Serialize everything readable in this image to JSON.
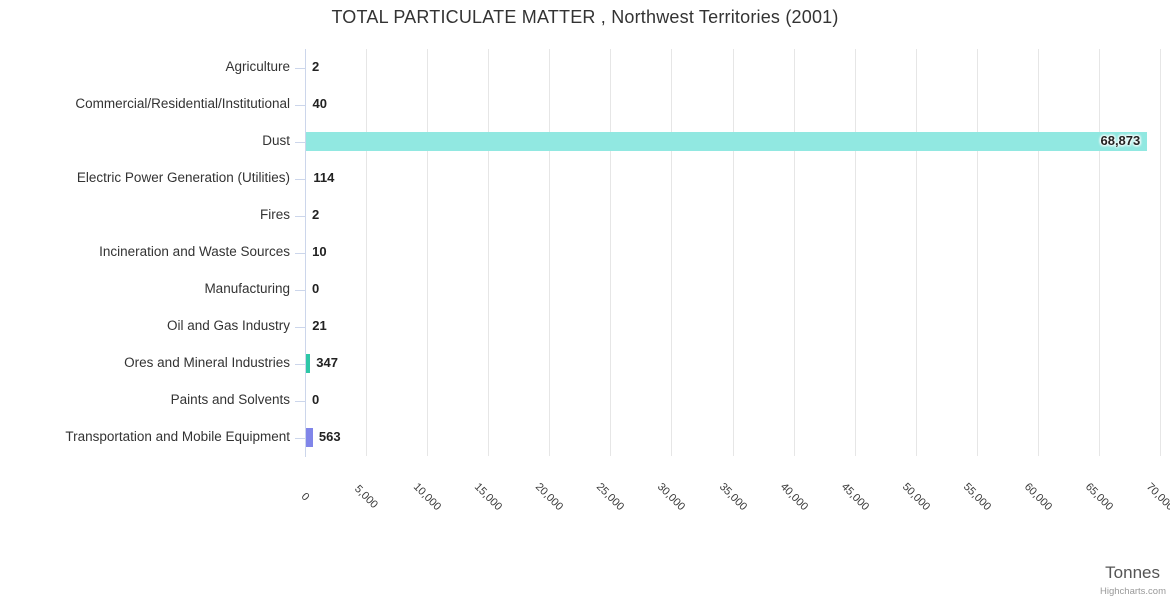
{
  "title": "TOTAL PARTICULATE MATTER , Northwest Territories (2001)",
  "credits_label": "Highcharts.com",
  "chart_data": {
    "type": "bar",
    "orientation": "horizontal",
    "title": "TOTAL PARTICULATE MATTER , Northwest Territories (2001)",
    "xlabel": "Tonnes",
    "ylabel": "",
    "categories": [
      "Agriculture",
      "Commercial/Residential/Institutional",
      "Dust",
      "Electric Power Generation (Utilities)",
      "Fires",
      "Incineration and Waste Sources",
      "Manufacturing",
      "Oil and Gas Industry",
      "Ores and Mineral Industries",
      "Paints and Solvents",
      "Transportation and Mobile Equipment"
    ],
    "values": [
      2,
      40,
      68873,
      114,
      2,
      10,
      0,
      21,
      347,
      0,
      563
    ],
    "value_labels": [
      "2",
      "40",
      "68,873",
      "114",
      "2",
      "10",
      "0",
      "21",
      "347",
      "0",
      "563"
    ],
    "point_colors": [
      null,
      null,
      "#91e8e1",
      null,
      null,
      null,
      null,
      null,
      "#2ec7a7",
      null,
      "#8085e9"
    ],
    "xlim": [
      0,
      70000
    ],
    "x_tick_step": 5000,
    "x_tick_labels": [
      "0",
      "5,000",
      "10,000",
      "15,000",
      "20,000",
      "25,000",
      "30,000",
      "35,000",
      "40,000",
      "45,000",
      "50,000",
      "55,000",
      "60,000",
      "65,000",
      "70,000"
    ],
    "grid": true,
    "legend": "none"
  },
  "colors": {
    "background": "#ffffff",
    "title_text": "#333333",
    "category_text": "#333333",
    "tick_text": "#3a3a3a",
    "value_text": "#222222",
    "gridline": "#e6e6e6",
    "axis_line": "#ccd6eb",
    "axis_title_text": "#555555",
    "credits_text": "#999999",
    "bar_dust": "#91e8e1",
    "bar_ores": "#2ec7a7",
    "bar_transportation": "#8085e9"
  }
}
